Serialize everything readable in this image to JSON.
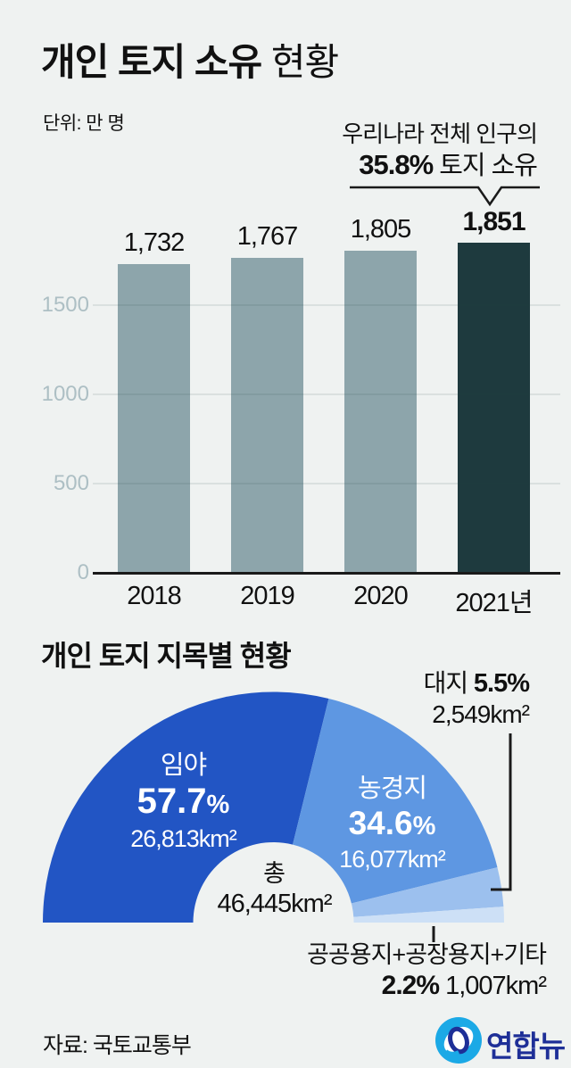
{
  "page": {
    "bg": "#eff2f1",
    "text_color": "#111111"
  },
  "header": {
    "title_strong": "개인 토지 소유",
    "title_rest": " 현황",
    "unit": "단위: 만 명"
  },
  "annotation": {
    "line1": "우리나라 전체 인구의",
    "pct": "35.8%",
    "rest": " 토지 소유"
  },
  "chart_data": [
    {
      "type": "bar",
      "title": "개인 토지 소유 현황",
      "unit": "만 명",
      "categories": [
        "2018",
        "2019",
        "2020",
        "2021년"
      ],
      "values": [
        1732,
        1767,
        1805,
        1851
      ],
      "value_labels": [
        "1,732",
        "1,767",
        "1,805",
        "1,851"
      ],
      "highlight_index": 3,
      "yticks": [
        0,
        500,
        1000,
        1500
      ],
      "ylim": [
        0,
        1900
      ],
      "grid": true,
      "bar_color": "#8da5ab",
      "highlight_color": "#1e3a3e",
      "tick_color": "#adbfc4",
      "annotation": "우리나라 전체 인구의 35.8% 토지 소유"
    },
    {
      "type": "pie",
      "variant": "semi-donut",
      "title": "개인 토지 지목별 현황",
      "percent_sign": "%",
      "slices": [
        {
          "label": "임야",
          "pct": 57.7,
          "pct_num": "57.7",
          "pct_label": "57.7%",
          "area": "26,813km²",
          "color": "#2255c4"
        },
        {
          "label": "농경지",
          "pct": 34.6,
          "pct_num": "34.6",
          "pct_label": "34.6%",
          "area": "16,077km²",
          "color": "#5e97e2"
        },
        {
          "label": "대지",
          "pct": 5.5,
          "pct_num": "5.5",
          "pct_label": "5.5%",
          "area": "2,549km²",
          "color": "#9cc0ee"
        },
        {
          "label": "공공용지+공장용지+기타",
          "pct": 2.2,
          "pct_num": "2.2",
          "pct_label": "2.2%",
          "area": "1,007km²",
          "color": "#cde0f6"
        }
      ],
      "center": {
        "label": "총",
        "value": "46,445km²"
      }
    }
  ],
  "footer": {
    "source": "자료: 국토교통부",
    "logo_name": "연합뉴스",
    "logo_mark_color": "#1ba9e6",
    "logo_text_color": "#1e2f97"
  }
}
